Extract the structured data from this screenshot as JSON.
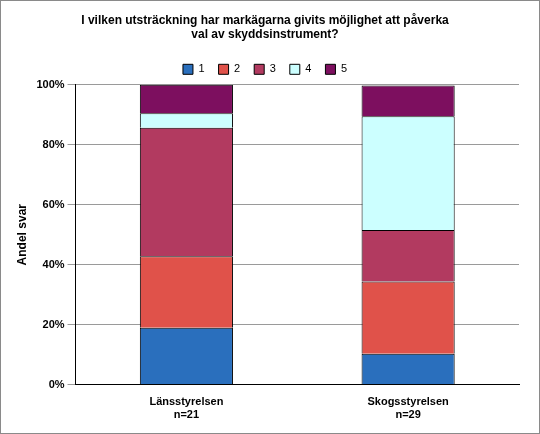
{
  "chart_data": {
    "type": "bar",
    "title": "I vilken utsträckning har markägarna givits möjlighet att påverka\nval av skyddsinstrument?",
    "y_label": "Andel svar",
    "categories": [
      "Länsstyrelsen\nn=21",
      "Skogsstyrelsen\nn=29"
    ],
    "series": [
      {
        "name": "1",
        "color": "#2a6fbd",
        "values": [
          19.0,
          10.3
        ]
      },
      {
        "name": "2",
        "color": "#e0524a",
        "values": [
          23.8,
          24.1
        ]
      },
      {
        "name": "3",
        "color": "#b23a60",
        "values": [
          42.9,
          17.2
        ]
      },
      {
        "name": "4",
        "color": "#ccffff",
        "values": [
          4.8,
          37.9
        ]
      },
      {
        "name": "5",
        "color": "#7d0f5f",
        "values": [
          9.5,
          10.3
        ]
      }
    ],
    "ylim": [
      0,
      100
    ],
    "yticks": [
      {
        "value": 0,
        "label": "0%"
      },
      {
        "value": 20,
        "label": "20%"
      },
      {
        "value": 40,
        "label": "40%"
      },
      {
        "value": 60,
        "label": "60%"
      },
      {
        "value": 80,
        "label": "80%"
      },
      {
        "value": 100,
        "label": "100%"
      }
    ],
    "stacked": true,
    "grid": true,
    "legend": "top"
  }
}
